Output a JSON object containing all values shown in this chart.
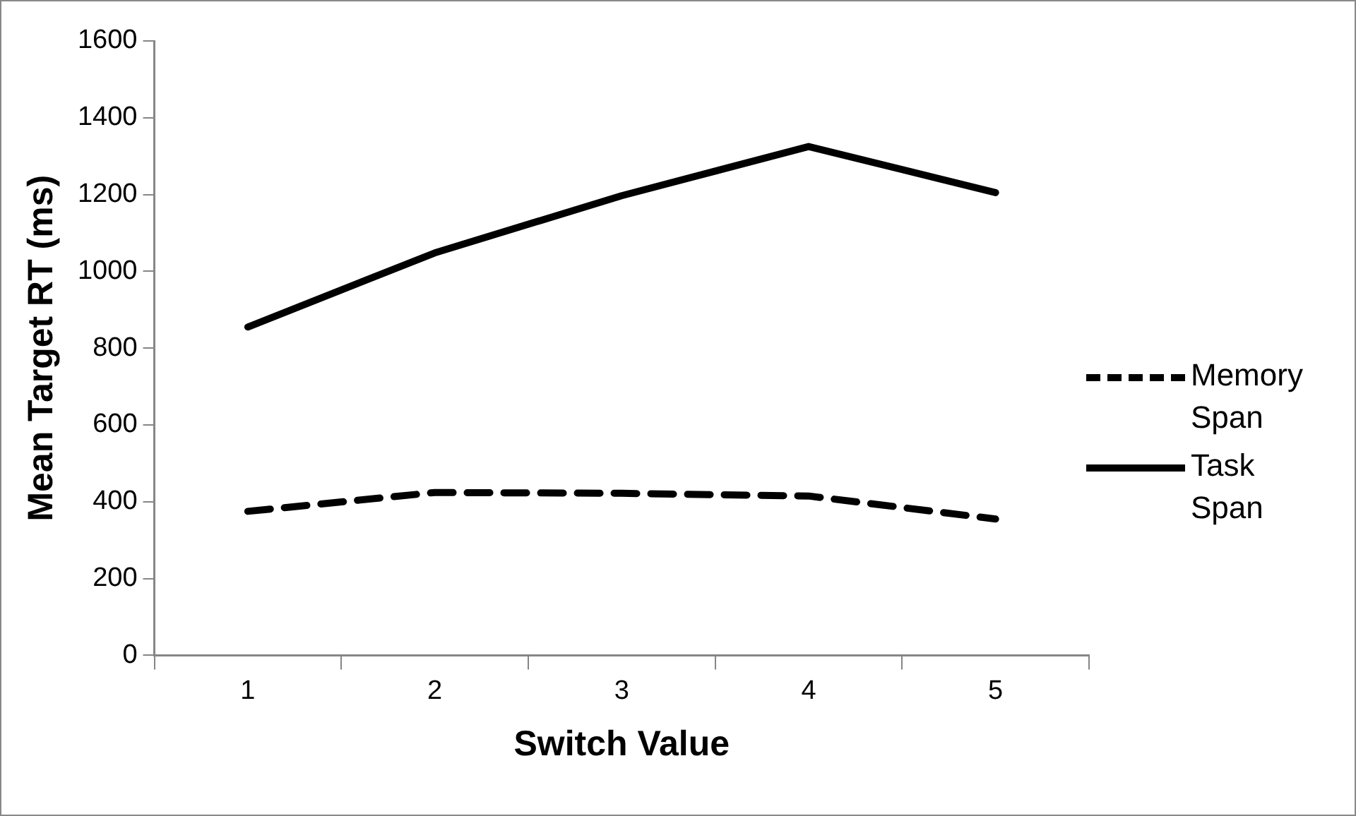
{
  "chart_data": {
    "type": "line",
    "xlabel": "Switch Value",
    "ylabel": "Mean Target RT (ms)",
    "categories": [
      "1",
      "2",
      "3",
      "4",
      "5"
    ],
    "series": [
      {
        "name": "Memory Span",
        "color": "#000000",
        "line_style": "dashed",
        "values": [
          375,
          424,
          422,
          415,
          355
        ]
      },
      {
        "name": "Task Span",
        "color": "#000000",
        "line_style": "solid",
        "values": [
          855,
          1048,
          1197,
          1325,
          1205
        ]
      }
    ],
    "ylim": [
      0,
      1600
    ],
    "yticks": [
      0,
      200,
      400,
      600,
      800,
      1000,
      1200,
      1400,
      1600
    ],
    "grid": false,
    "legend": "right",
    "marker": "none"
  }
}
